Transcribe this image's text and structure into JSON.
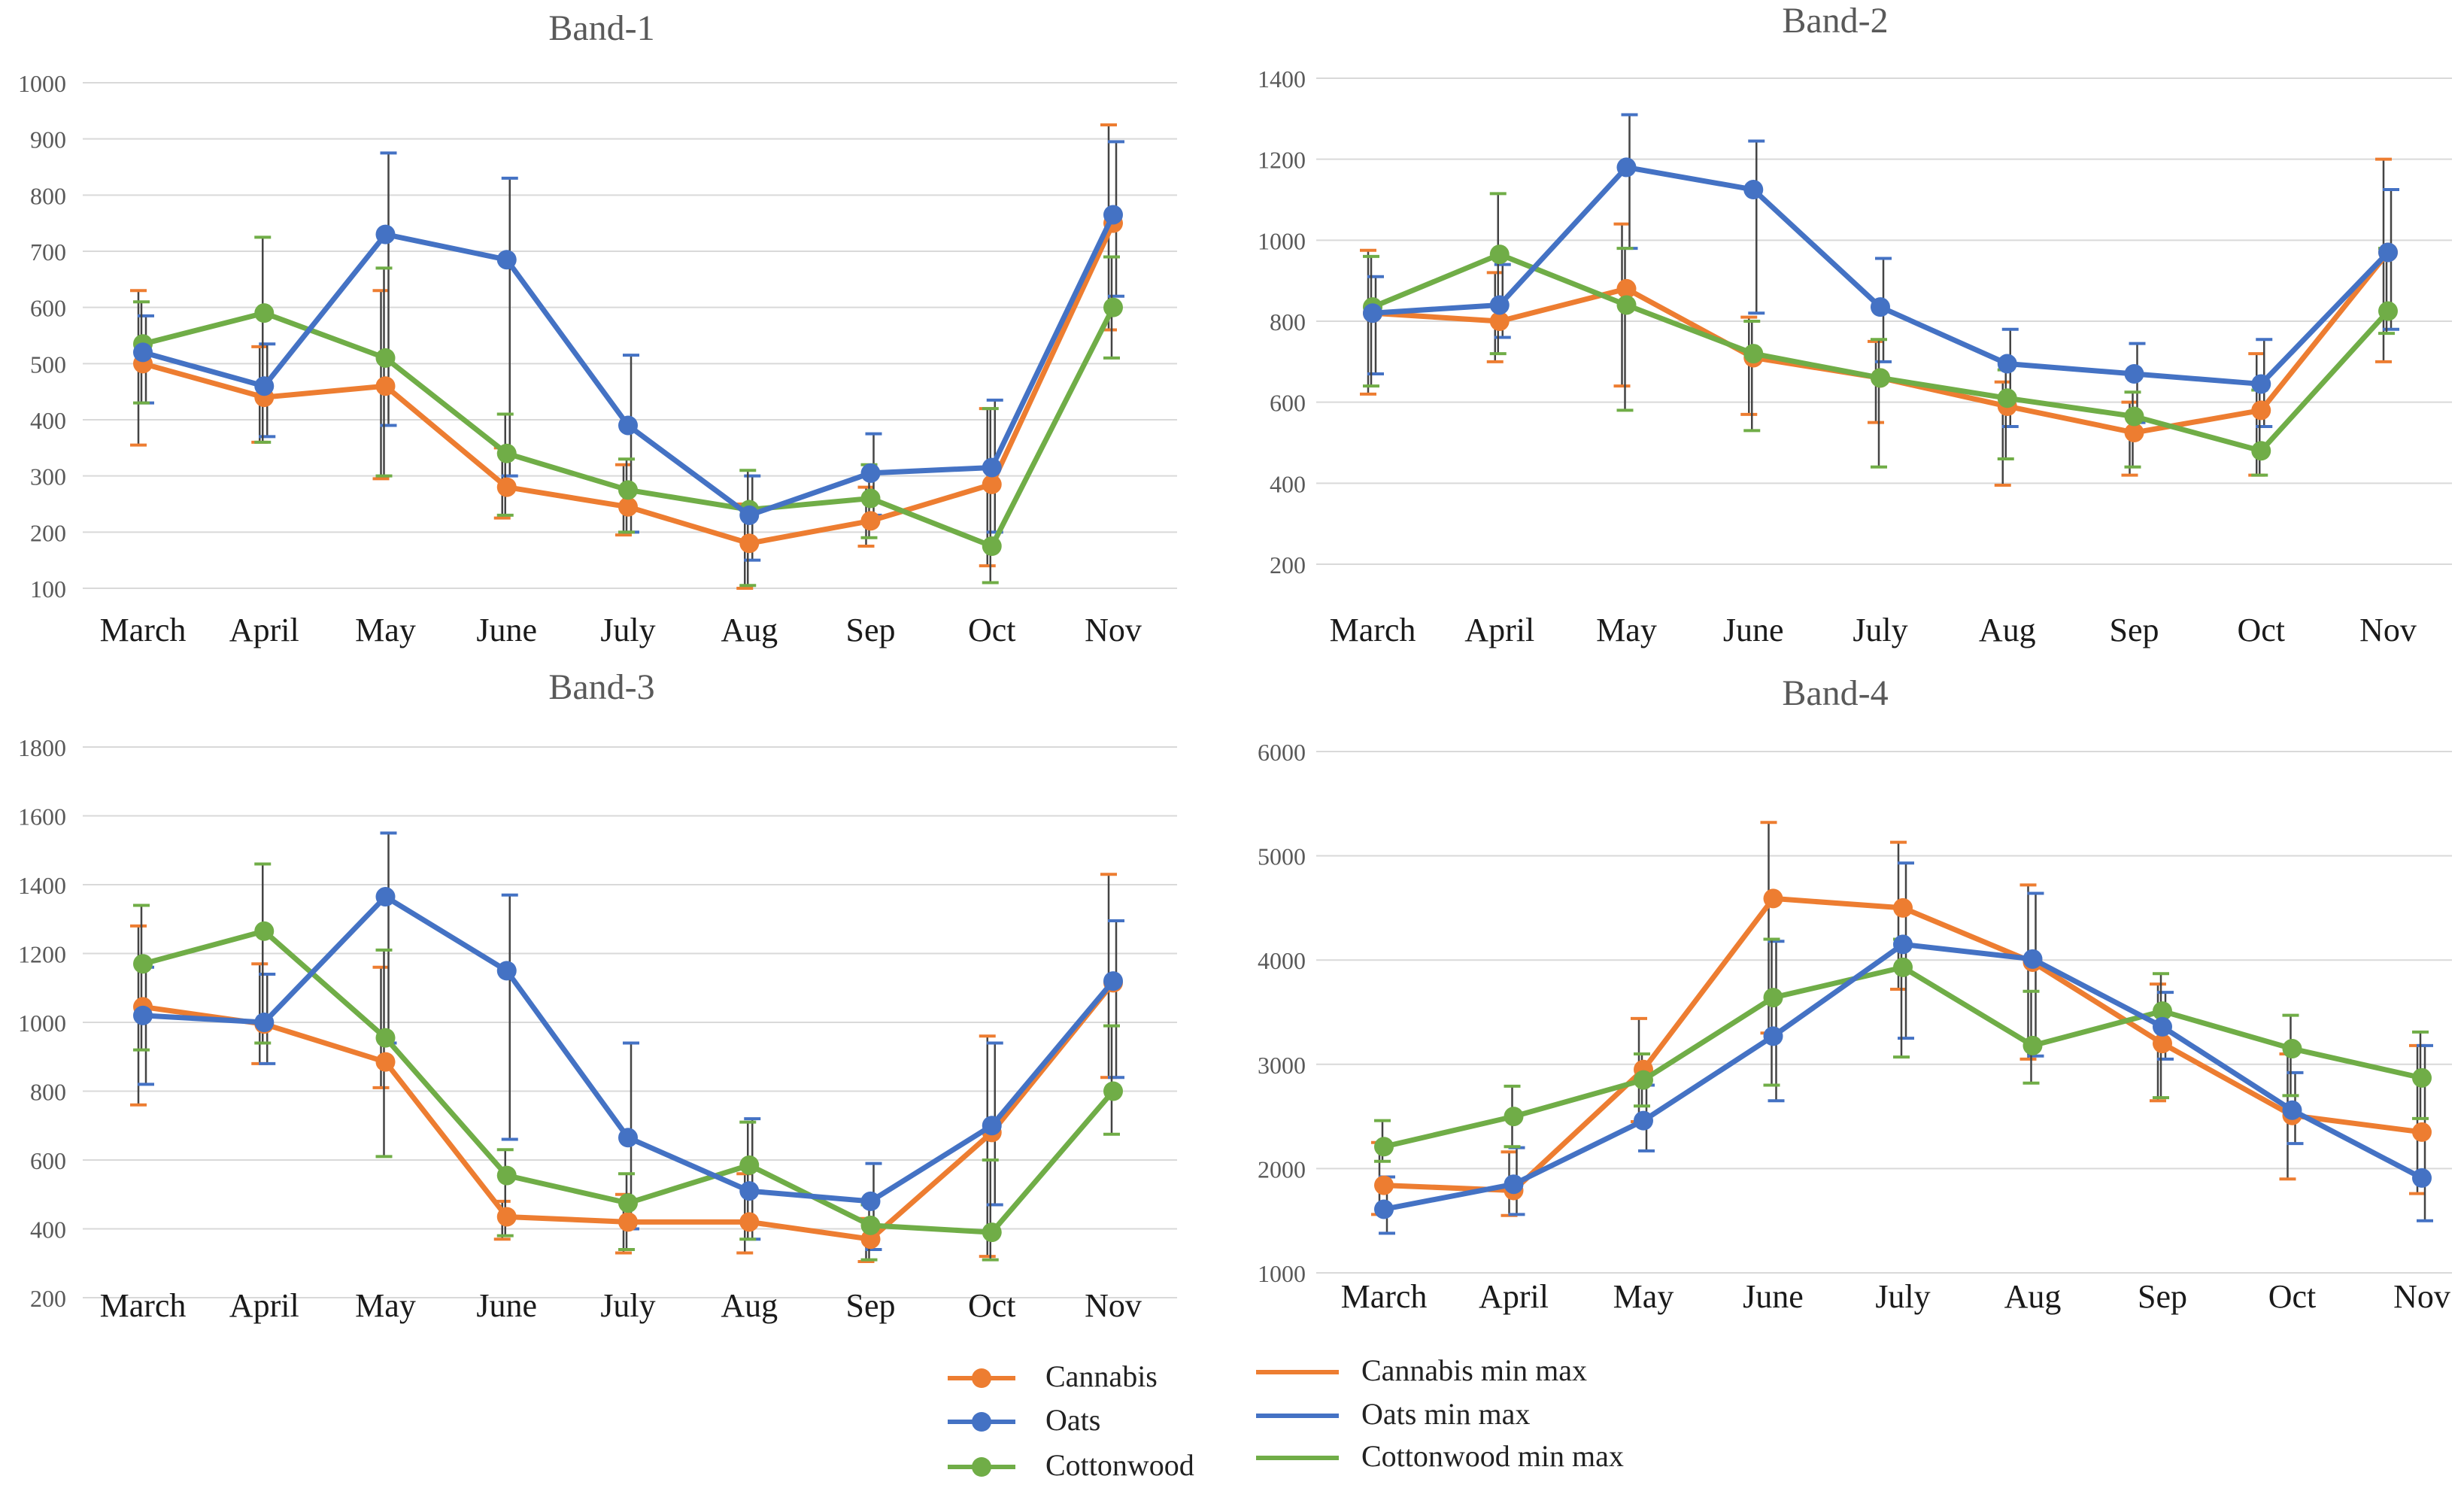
{
  "colors": {
    "cannabis": "#ed7d31",
    "oats": "#4472c4",
    "cottonwood": "#70ad47",
    "cannabis_bar": "#ed7d31",
    "oats_bar": "#4472c4",
    "cottonwood_bar": "#70ad47",
    "black_bar": "#444444",
    "grid": "#d9d9d9",
    "tick_text": "#595959",
    "title_text": "#595959"
  },
  "legend": {
    "items": [
      {
        "key": "cannabis",
        "label": "Cannabis",
        "type": "marker"
      },
      {
        "key": "oats",
        "label": "Oats",
        "type": "marker"
      },
      {
        "key": "cottonwood",
        "label": "Cottonwood",
        "type": "marker"
      },
      {
        "key": "cannabis",
        "label": "Cannabis min max",
        "type": "line"
      },
      {
        "key": "oats",
        "label": "Oats min max",
        "type": "line"
      },
      {
        "key": "cottonwood",
        "label": "Cottonwood min max",
        "type": "line"
      }
    ]
  },
  "chart_data": [
    {
      "type": "line",
      "title": "Band-1",
      "categories": [
        "March",
        "April",
        "May",
        "June",
        "July",
        "Aug",
        "Sep",
        "Oct",
        "Nov"
      ],
      "ylim": [
        100,
        1000
      ],
      "yticks": [
        100,
        200,
        300,
        400,
        500,
        600,
        700,
        800,
        900,
        1000
      ],
      "grid": true,
      "series": [
        {
          "name": "Cannabis",
          "key": "cannabis",
          "values": [
            500,
            440,
            460,
            280,
            245,
            180,
            220,
            285,
            750
          ],
          "min": [
            355,
            360,
            295,
            225,
            195,
            100,
            175,
            140,
            560
          ],
          "max": [
            630,
            530,
            630,
            350,
            320,
            250,
            280,
            420,
            925
          ]
        },
        {
          "name": "Oats",
          "key": "oats",
          "values": [
            520,
            460,
            730,
            685,
            390,
            230,
            305,
            315,
            765
          ],
          "min": [
            430,
            370,
            390,
            300,
            200,
            150,
            230,
            200,
            620
          ],
          "max": [
            585,
            535,
            875,
            830,
            515,
            300,
            375,
            435,
            895
          ]
        },
        {
          "name": "Cottonwood",
          "key": "cottonwood",
          "values": [
            535,
            590,
            510,
            340,
            275,
            240,
            260,
            175,
            600
          ],
          "min": [
            430,
            360,
            300,
            230,
            200,
            105,
            190,
            110,
            510
          ],
          "max": [
            610,
            725,
            670,
            410,
            330,
            310,
            320,
            420,
            690
          ]
        }
      ]
    },
    {
      "type": "line",
      "title": "Band-2",
      "categories": [
        "March",
        "April",
        "May",
        "June",
        "July",
        "Aug",
        "Sep",
        "Oct",
        "Nov"
      ],
      "ylim": [
        200,
        1400
      ],
      "yticks": [
        200,
        400,
        600,
        800,
        1000,
        1200,
        1400
      ],
      "grid": true,
      "series": [
        {
          "name": "Cannabis",
          "key": "cannabis",
          "values": [
            820,
            800,
            880,
            710,
            660,
            590,
            525,
            580,
            970
          ],
          "min": [
            620,
            700,
            640,
            570,
            550,
            395,
            420,
            420,
            700
          ],
          "max": [
            975,
            920,
            1040,
            810,
            750,
            650,
            600,
            720,
            1200
          ]
        },
        {
          "name": "Oats",
          "key": "oats",
          "values": [
            820,
            840,
            1180,
            1125,
            835,
            695,
            670,
            645,
            970
          ],
          "min": [
            670,
            760,
            980,
            820,
            700,
            540,
            550,
            540,
            780
          ],
          "max": [
            910,
            940,
            1310,
            1245,
            955,
            780,
            745,
            755,
            1125
          ]
        },
        {
          "name": "Cottonwood",
          "key": "cottonwood",
          "values": [
            835,
            965,
            840,
            720,
            660,
            610,
            565,
            480,
            825
          ],
          "min": [
            640,
            720,
            580,
            530,
            440,
            460,
            440,
            420,
            770
          ],
          "max": [
            960,
            1115,
            980,
            800,
            755,
            680,
            625,
            630,
            980
          ]
        }
      ]
    },
    {
      "type": "line",
      "title": "Band-3",
      "categories": [
        "March",
        "April",
        "May",
        "June",
        "July",
        "Aug",
        "Sep",
        "Oct",
        "Nov"
      ],
      "ylim": [
        200,
        1800
      ],
      "yticks": [
        200,
        400,
        600,
        800,
        1000,
        1200,
        1400,
        1600,
        1800
      ],
      "grid": true,
      "series": [
        {
          "name": "Cannabis",
          "key": "cannabis",
          "values": [
            1045,
            995,
            885,
            435,
            420,
            420,
            370,
            680,
            1115
          ],
          "min": [
            760,
            880,
            810,
            370,
            330,
            330,
            305,
            320,
            840
          ],
          "max": [
            1280,
            1170,
            1160,
            480,
            500,
            560,
            430,
            960,
            1430
          ]
        },
        {
          "name": "Oats",
          "key": "oats",
          "values": [
            1020,
            1000,
            1365,
            1150,
            665,
            510,
            480,
            700,
            1120
          ],
          "min": [
            820,
            880,
            940,
            660,
            400,
            370,
            340,
            470,
            840
          ],
          "max": [
            1160,
            1140,
            1550,
            1370,
            940,
            720,
            590,
            940,
            1295
          ]
        },
        {
          "name": "Cottonwood",
          "key": "cottonwood",
          "values": [
            1170,
            1265,
            955,
            555,
            475,
            585,
            410,
            390,
            800
          ],
          "min": [
            920,
            940,
            610,
            380,
            340,
            370,
            310,
            310,
            675
          ],
          "max": [
            1340,
            1460,
            1210,
            630,
            560,
            710,
            470,
            600,
            990
          ]
        }
      ]
    },
    {
      "type": "line",
      "title": "Band-4",
      "categories": [
        "March",
        "April",
        "May",
        "June",
        "July",
        "Aug",
        "Sep",
        "Oct",
        "Nov"
      ],
      "ylim": [
        1000,
        6000
      ],
      "yticks": [
        1000,
        2000,
        3000,
        4000,
        5000,
        6000
      ],
      "grid": true,
      "series": [
        {
          "name": "Cannabis",
          "key": "cannabis",
          "values": [
            1840,
            1790,
            2950,
            4590,
            4500,
            3980,
            3200,
            2510,
            2350
          ],
          "min": [
            1560,
            1550,
            2450,
            3300,
            3720,
            3050,
            2650,
            1900,
            1760
          ],
          "max": [
            2250,
            2160,
            3440,
            5320,
            5130,
            4720,
            3770,
            3100,
            3180
          ]
        },
        {
          "name": "Oats",
          "key": "oats",
          "values": [
            1610,
            1850,
            2460,
            3270,
            4150,
            4010,
            3360,
            2560,
            1910
          ],
          "min": [
            1380,
            1560,
            2170,
            2650,
            3250,
            3080,
            3050,
            2240,
            1500
          ],
          "max": [
            1920,
            2200,
            2800,
            4180,
            4930,
            4640,
            3690,
            2920,
            3180
          ]
        },
        {
          "name": "Cottonwood",
          "key": "cottonwood",
          "values": [
            2210,
            2500,
            2850,
            3640,
            3930,
            3180,
            3510,
            3150,
            2870
          ],
          "min": [
            2070,
            2210,
            2600,
            2800,
            3070,
            2820,
            2680,
            2700,
            2480
          ],
          "max": [
            2460,
            2790,
            3100,
            4200,
            4200,
            3700,
            3870,
            3470,
            3310
          ]
        }
      ]
    }
  ]
}
